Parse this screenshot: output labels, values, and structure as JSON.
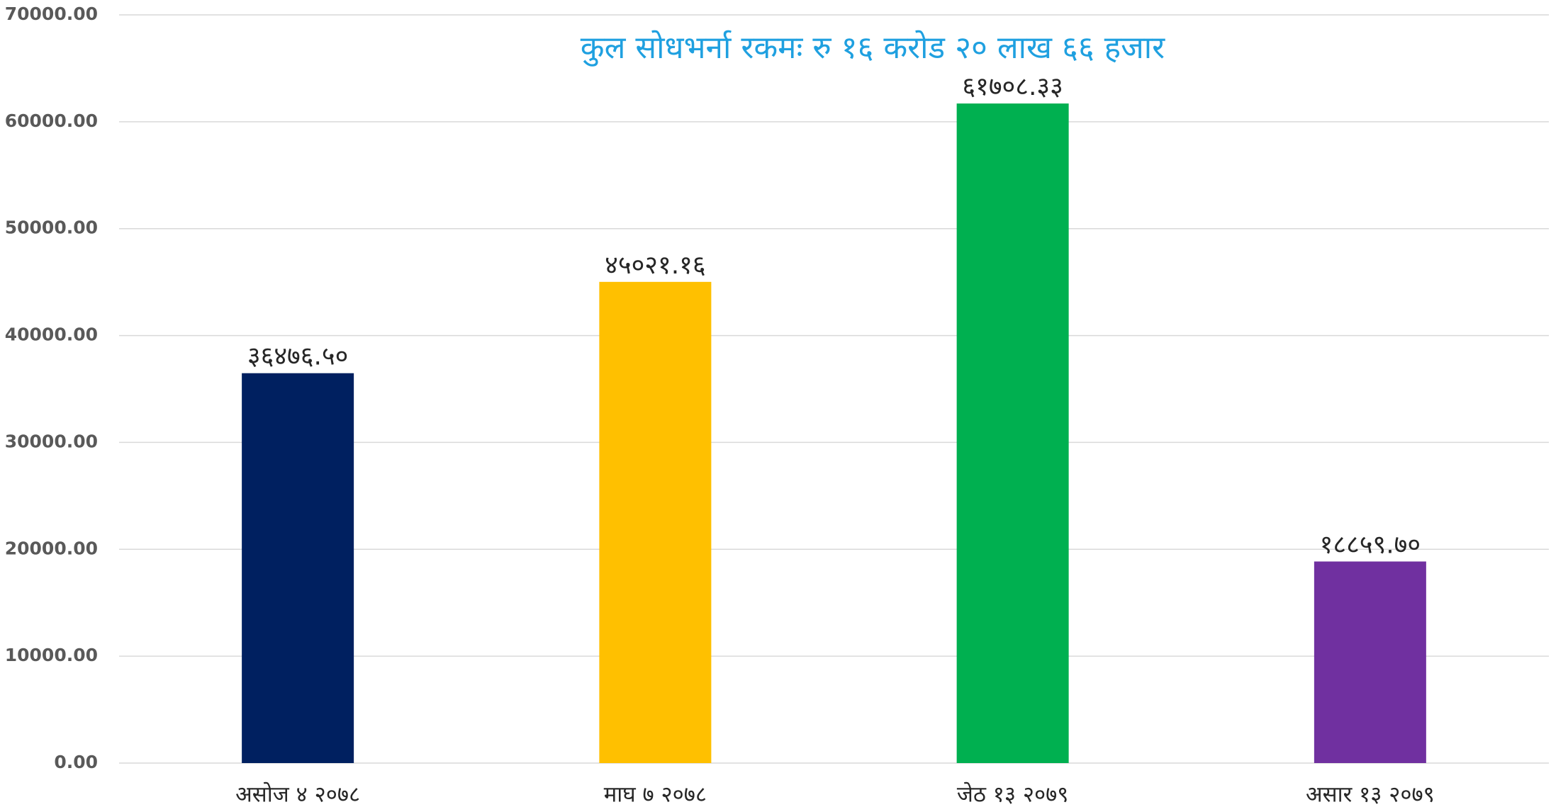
{
  "chart_data": {
    "type": "bar",
    "title": "कुल सोधभर्ना रकमः रु १६ करोड २० लाख ६६ हजार",
    "categories": [
      "असोज ४ २०७८",
      "माघ ७ २०७८",
      "जेठ १३ २०७९",
      "असार १३ २०७९"
    ],
    "values": [
      36476.5,
      45021.16,
      61708.33,
      18859.7
    ],
    "value_labels": [
      "३६४७६.५०",
      "४५०२१.१६",
      "६१७०८.३३",
      "१८८५९.७०"
    ],
    "colors": [
      "#002060",
      "#ffc000",
      "#00b050",
      "#7030a0"
    ],
    "ylim": [
      0,
      70000
    ],
    "yticks": [
      {
        "value": 0,
        "label": "0.00"
      },
      {
        "value": 10000,
        "label": "10000.00"
      },
      {
        "value": 20000,
        "label": "20000.00"
      },
      {
        "value": 30000,
        "label": "30000.00"
      },
      {
        "value": 40000,
        "label": "40000.00"
      },
      {
        "value": 50000,
        "label": "50000.00"
      },
      {
        "value": 60000,
        "label": "60000.00"
      },
      {
        "value": 70000,
        "label": "70000.00"
      }
    ],
    "grid": true
  }
}
